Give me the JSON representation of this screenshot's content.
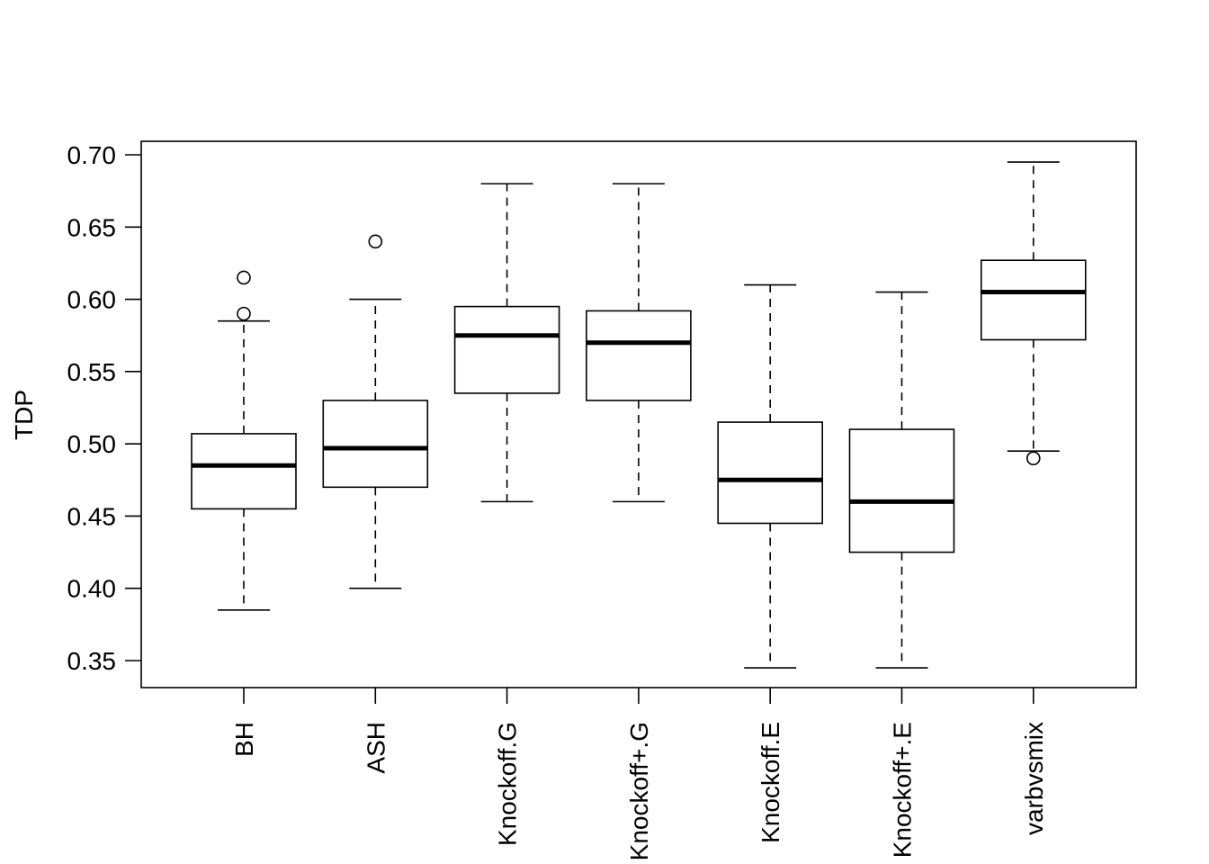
{
  "chart_data": {
    "type": "boxplot",
    "title": "",
    "xlabel": "",
    "ylabel": "TDP",
    "ylim": [
      0.33,
      0.71
    ],
    "yticks": [
      0.35,
      0.4,
      0.45,
      0.5,
      0.55,
      0.6,
      0.65,
      0.7
    ],
    "ytick_labels": [
      "0.35",
      "0.40",
      "0.45",
      "0.50",
      "0.55",
      "0.60",
      "0.65",
      "0.70"
    ],
    "grid": false,
    "categories": [
      "BH",
      "ASH",
      "Knockoff.G",
      "Knockoff+.G",
      "Knockoff.E",
      "Knockoff+.E",
      "varbvsmix"
    ],
    "boxes": [
      {
        "name": "BH",
        "whisker_low": 0.385,
        "q1": 0.455,
        "median": 0.485,
        "q3": 0.507,
        "whisker_high": 0.585,
        "outliers": [
          0.59,
          0.615
        ]
      },
      {
        "name": "ASH",
        "whisker_low": 0.4,
        "q1": 0.47,
        "median": 0.497,
        "q3": 0.53,
        "whisker_high": 0.6,
        "outliers": [
          0.64
        ]
      },
      {
        "name": "Knockoff.G",
        "whisker_low": 0.46,
        "q1": 0.535,
        "median": 0.575,
        "q3": 0.595,
        "whisker_high": 0.68,
        "outliers": []
      },
      {
        "name": "Knockoff+.G",
        "whisker_low": 0.46,
        "q1": 0.53,
        "median": 0.57,
        "q3": 0.592,
        "whisker_high": 0.68,
        "outliers": []
      },
      {
        "name": "Knockoff.E",
        "whisker_low": 0.345,
        "q1": 0.445,
        "median": 0.475,
        "q3": 0.515,
        "whisker_high": 0.61,
        "outliers": []
      },
      {
        "name": "Knockoff+.E",
        "whisker_low": 0.345,
        "q1": 0.425,
        "median": 0.46,
        "q3": 0.51,
        "whisker_high": 0.605,
        "outliers": []
      },
      {
        "name": "varbvsmix",
        "whisker_low": 0.495,
        "q1": 0.572,
        "median": 0.605,
        "q3": 0.627,
        "whisker_high": 0.695,
        "outliers": [
          0.49
        ]
      }
    ]
  }
}
